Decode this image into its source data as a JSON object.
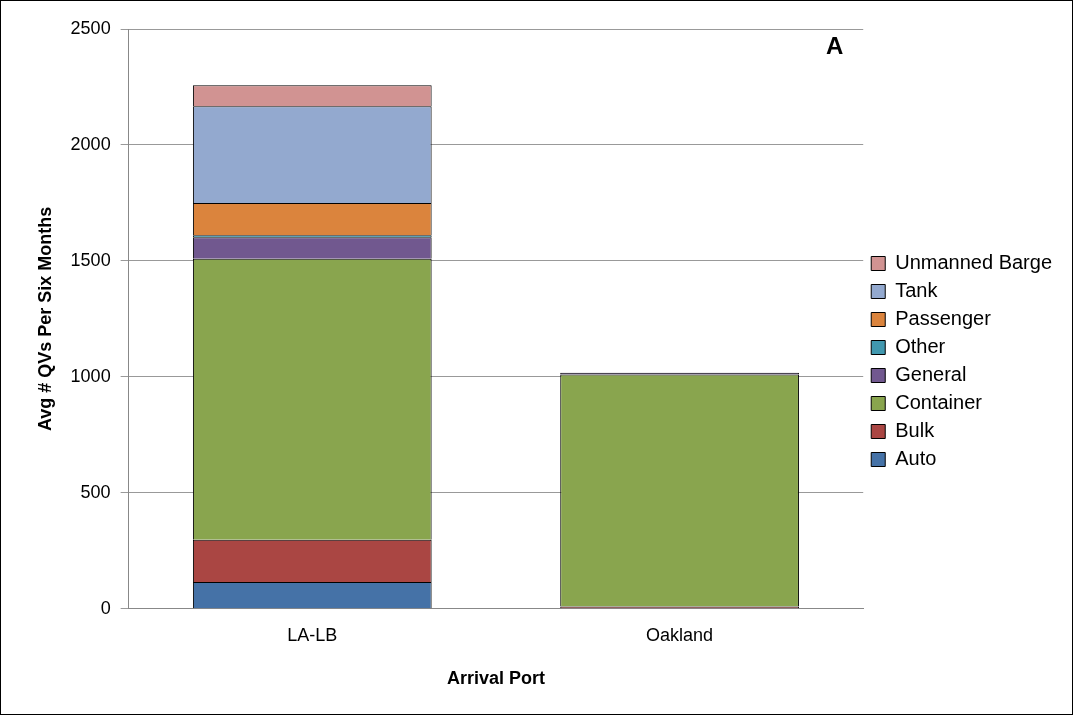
{
  "chart_data": {
    "type": "bar",
    "title": "A",
    "xlabel": "Arrival Port",
    "ylabel": "Avg # QVs Per Six Months",
    "categories": [
      "LA-LB",
      "Oakland"
    ],
    "stacked": true,
    "ylim": [
      0,
      2500
    ],
    "yticks": [
      0,
      500,
      1000,
      1500,
      2000,
      2500
    ],
    "grid": "y",
    "legend": "right",
    "series": [
      {
        "name": "Auto",
        "color": "#4572a7",
        "values": [
          116,
          0
        ]
      },
      {
        "name": "Bulk",
        "color": "#aa4643",
        "values": [
          182,
          10
        ]
      },
      {
        "name": "Container",
        "color": "#89a54e",
        "values": [
          1211,
          1000
        ]
      },
      {
        "name": "General",
        "color": "#71588f",
        "values": [
          93,
          8
        ]
      },
      {
        "name": "Other",
        "color": "#4198af",
        "values": [
          9,
          0
        ]
      },
      {
        "name": "Passenger",
        "color": "#db843d",
        "values": [
          139,
          0
        ]
      },
      {
        "name": "Tank",
        "color": "#93a9cf",
        "values": [
          417,
          0
        ]
      },
      {
        "name": "Unmanned Barge",
        "color": "#d19392",
        "values": [
          90,
          0
        ]
      }
    ]
  }
}
